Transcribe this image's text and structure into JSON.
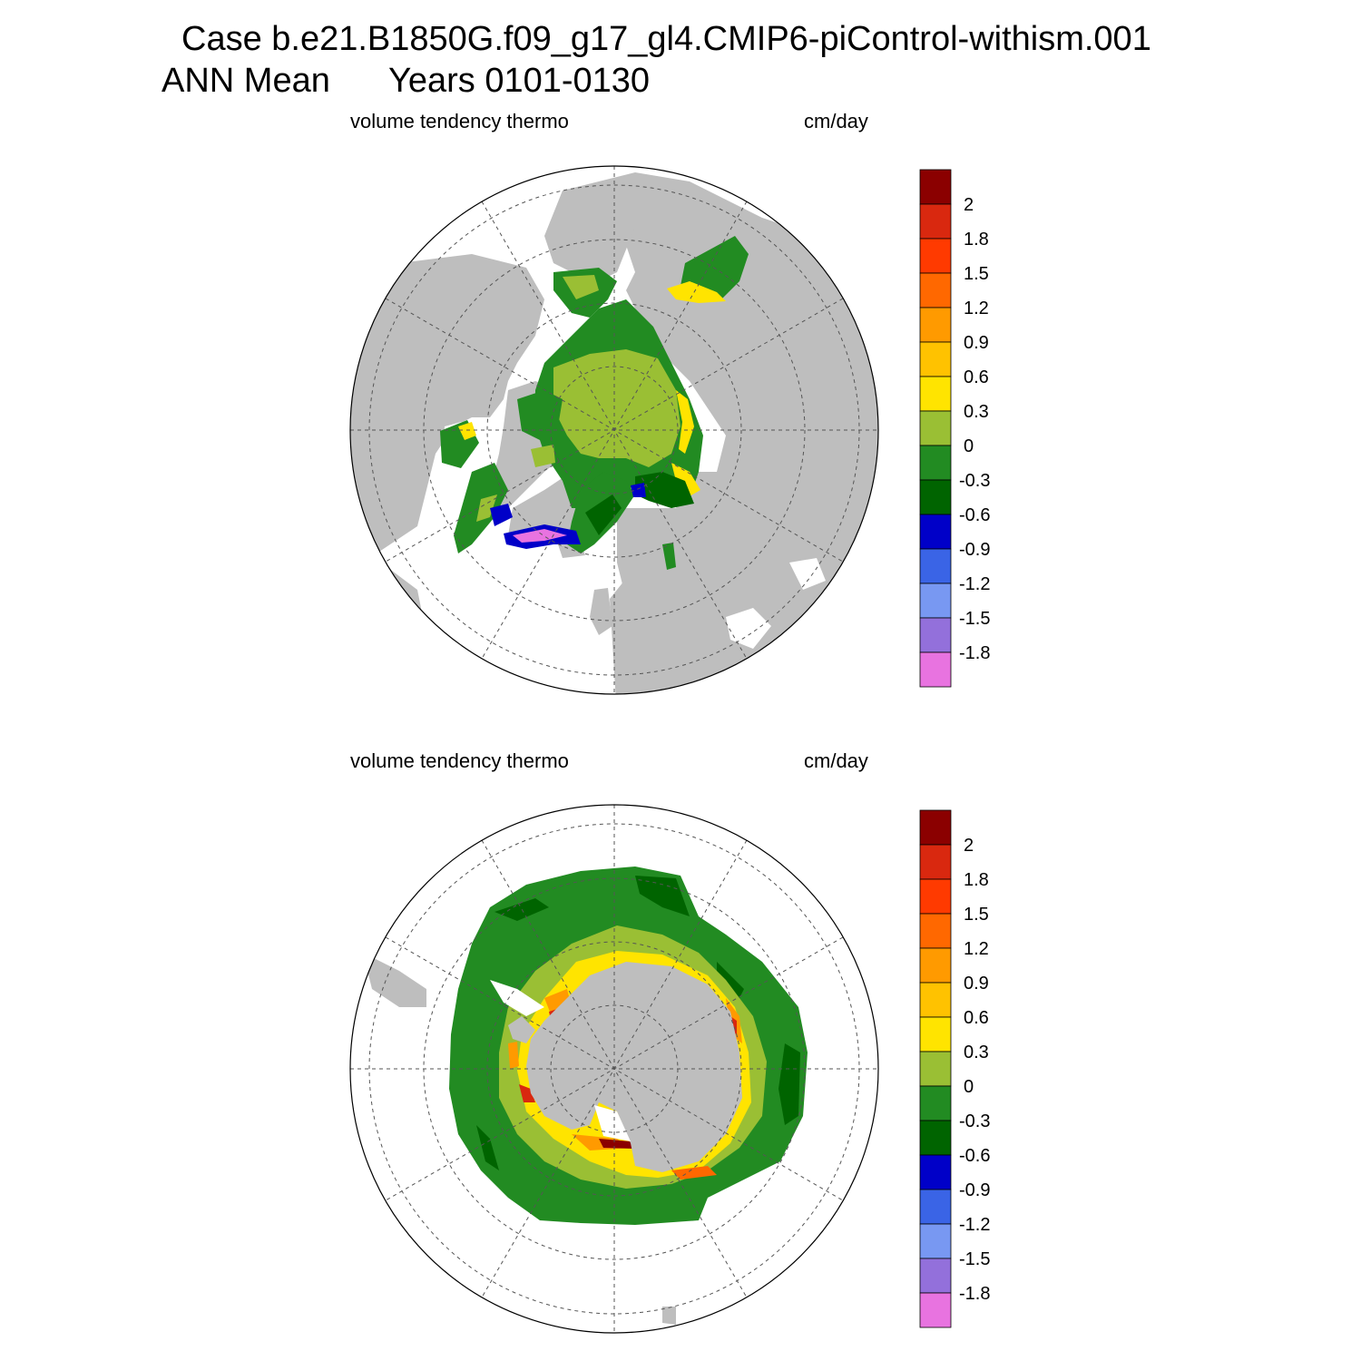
{
  "title": {
    "case": "Case b.e21.B1850G.f09_g17_gl4.CMIP6-piControl-withism.001",
    "mean": "ANN Mean",
    "years": "Years 0101-0130"
  },
  "panels": [
    {
      "id": "nh",
      "hemisphere": "north",
      "variable": "volume tendency thermo",
      "units": "cm/day"
    },
    {
      "id": "sh",
      "hemisphere": "south",
      "variable": "volume tendency thermo",
      "units": "cm/day"
    }
  ],
  "colorbar": {
    "labels": [
      "2",
      "1.8",
      "1.5",
      "1.2",
      "0.9",
      "0.6",
      "0.3",
      "0",
      "-0.3",
      "-0.6",
      "-0.9",
      "-1.2",
      "-1.5",
      "-1.8"
    ],
    "colors": [
      "#8b0000",
      "#d9280f",
      "#ff3a00",
      "#ff6800",
      "#ff9a00",
      "#ffc200",
      "#ffe400",
      "#9abf34",
      "#228b22",
      "#006400",
      "#0000c8",
      "#3a64e6",
      "#7898f2",
      "#9370db",
      "#e873e0"
    ]
  },
  "colors": {
    "land": "#bebebe",
    "ocean": "#ffffff",
    "grid": "#555555"
  }
}
